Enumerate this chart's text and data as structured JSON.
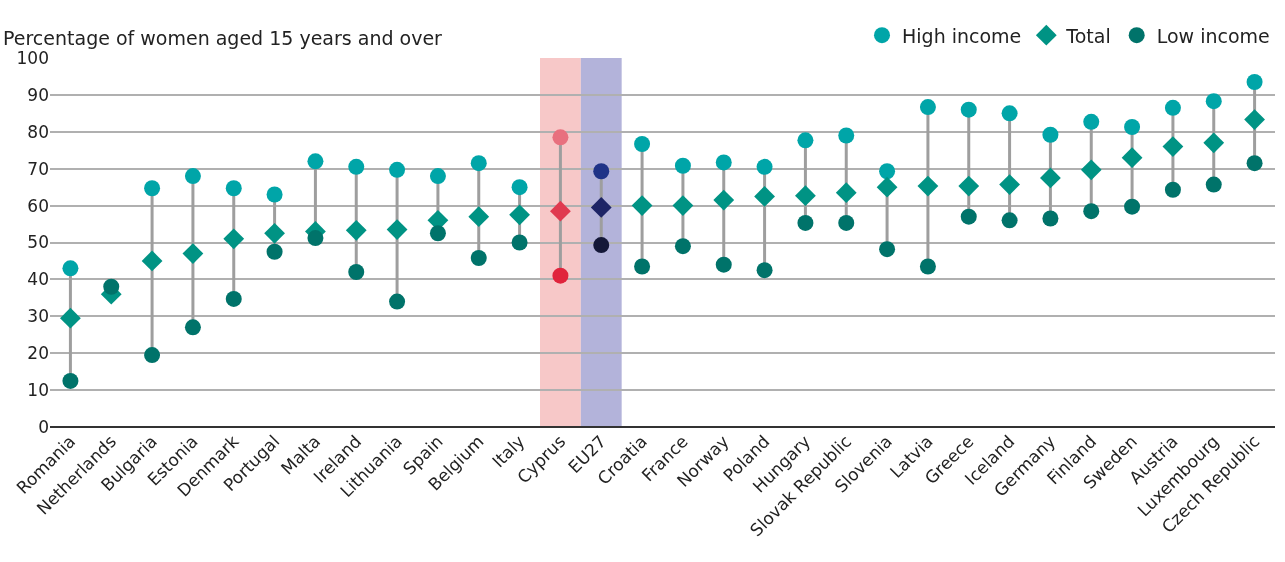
{
  "chart_data": {
    "type": "scatter",
    "ylabel": "Percentage of women aged 15 years and over",
    "categories": [
      "Romania",
      "Netherlands",
      "Bulgaria",
      "Estonia",
      "Denmark",
      "Portugal",
      "Malta",
      "Ireland",
      "Lithuania",
      "Spain",
      "Belgium",
      "Italy",
      "Cyprus",
      "EU27",
      "Croatia",
      "France",
      "Norway",
      "Poland",
      "Hungary",
      "Slovak Republic",
      "Slovenia",
      "Latvia",
      "Greece",
      "Iceland",
      "Germany",
      "Finland",
      "Sweden",
      "Austria",
      "Luxembourg",
      "Czech Republic"
    ],
    "series": [
      {
        "name": "High income",
        "marker": "circle",
        "color": "#00a5a8",
        "colors": [
          "#00a5a8",
          "#00a5a8",
          "#00a5a8",
          "#00a5a8",
          "#00a5a8",
          "#00a5a8",
          "#00a5a8",
          "#00a5a8",
          "#00a5a8",
          "#00a5a8",
          "#00a5a8",
          "#00a5a8",
          "#e8707e",
          "#1f3387",
          "#00a5a8",
          "#00a5a8",
          "#00a5a8",
          "#00a5a8",
          "#00a5a8",
          "#00a5a8",
          "#00a5a8",
          "#00a5a8",
          "#00a5a8",
          "#00a5a8",
          "#00a5a8",
          "#00a5a8",
          "#00a5a8",
          "#00a5a8",
          "#00a5a8",
          "#00a5a8"
        ],
        "values": [
          43,
          null,
          64.7,
          68,
          64.7,
          63,
          72,
          70.5,
          69.7,
          68,
          71.5,
          65,
          78.5,
          69.3,
          76.7,
          70.8,
          71.7,
          70.5,
          77.7,
          79,
          69.3,
          86.7,
          86,
          85,
          79.2,
          82.7,
          81.3,
          86.5,
          88.3,
          93.5
        ]
      },
      {
        "name": "Total",
        "marker": "diamond",
        "color": "#009384",
        "colors": [
          "#009384",
          "#009384",
          "#009384",
          "#009384",
          "#009384",
          "#009384",
          "#009384",
          "#009384",
          "#009384",
          "#009384",
          "#009384",
          "#009384",
          "#e03a50",
          "#1d2466",
          "#009384",
          "#009384",
          "#009384",
          "#009384",
          "#009384",
          "#009384",
          "#009384",
          "#009384",
          "#009384",
          "#009384",
          "#009384",
          "#009384",
          "#009384",
          "#009384",
          "#009384",
          "#009384"
        ],
        "values": [
          29.5,
          36,
          45,
          47,
          51,
          52.5,
          53,
          53.3,
          53.5,
          56,
          57,
          57.5,
          58.5,
          59.5,
          60,
          60,
          61.5,
          62.5,
          62.7,
          63.5,
          65,
          65.3,
          65.3,
          65.7,
          67.5,
          69.7,
          73,
          76,
          77,
          83.3
        ]
      },
      {
        "name": "Low income",
        "marker": "circle",
        "color": "#00736a",
        "colors": [
          "#00736a",
          "#00736a",
          "#00736a",
          "#00736a",
          "#00736a",
          "#00736a",
          "#00736a",
          "#00736a",
          "#00736a",
          "#00736a",
          "#00736a",
          "#00736a",
          "#e0243c",
          "#141838",
          "#00736a",
          "#00736a",
          "#00736a",
          "#00736a",
          "#00736a",
          "#00736a",
          "#00736a",
          "#00736a",
          "#00736a",
          "#00736a",
          "#00736a",
          "#00736a",
          "#00736a",
          "#00736a",
          "#00736a",
          "#00736a"
        ],
        "values": [
          12.5,
          38,
          19.5,
          27,
          34.7,
          47.5,
          51.2,
          42,
          34,
          52.5,
          45.8,
          50,
          41,
          49.3,
          43.5,
          49,
          44,
          42.5,
          55.3,
          55.3,
          48.2,
          43.5,
          57,
          56,
          56.5,
          58.5,
          59.7,
          64.3,
          65.7,
          71.5
        ]
      }
    ],
    "bands": [
      {
        "axis": "x",
        "from": "Cyprus",
        "to": "Cyprus",
        "color": "#f7c8c8"
      },
      {
        "axis": "x",
        "from": "EU27",
        "to": "EU27",
        "color": "#b3b3da"
      }
    ],
    "ylim": [
      0,
      100
    ],
    "yticks": [
      0,
      10,
      20,
      30,
      40,
      50,
      60,
      70,
      80,
      90,
      100
    ],
    "grid": "y",
    "legend": "top right"
  }
}
